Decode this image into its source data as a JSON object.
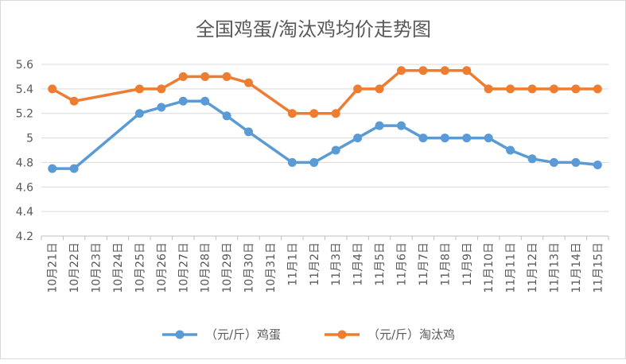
{
  "chart_data": {
    "type": "line",
    "title": "全国鸡蛋/淘汰鸡均价走势图",
    "xlabel": "",
    "ylabel": "",
    "ylim": [
      4.2,
      5.6
    ],
    "yticks": [
      "4.2",
      "4.4",
      "4.6",
      "4.8",
      "5",
      "5.2",
      "5.4",
      "5.6"
    ],
    "grid": true,
    "legend_position": "bottom",
    "categories": [
      "10月21日",
      "10月22日",
      "10月23日",
      "10月24日",
      "10月25日",
      "10月26日",
      "10月27日",
      "10月28日",
      "10月29日",
      "10月30日",
      "10月31日",
      "11月1日",
      "11月2日",
      "11月3日",
      "11月4日",
      "11月5日",
      "11月6日",
      "11月7日",
      "11月8日",
      "11月9日",
      "11月10日",
      "11月11日",
      "11月12日",
      "11月13日",
      "11月14日",
      "11月15日"
    ],
    "series": [
      {
        "name": "（元/斤）鸡蛋",
        "color": "#5b9bd5",
        "values": [
          4.75,
          4.75,
          null,
          null,
          5.2,
          5.25,
          5.3,
          5.3,
          5.18,
          5.05,
          null,
          4.8,
          4.8,
          4.9,
          5.0,
          5.1,
          5.1,
          5.0,
          5.0,
          5.0,
          5.0,
          4.9,
          4.83,
          4.8,
          4.8,
          4.78
        ]
      },
      {
        "name": "（元/斤）淘汰鸡",
        "color": "#ed7d31",
        "values": [
          5.4,
          5.3,
          null,
          null,
          5.4,
          5.4,
          5.5,
          5.5,
          5.5,
          5.45,
          null,
          5.2,
          5.2,
          5.2,
          5.4,
          5.4,
          5.55,
          5.55,
          5.55,
          5.55,
          5.4,
          5.4,
          5.4,
          5.4,
          5.4,
          5.4
        ]
      }
    ]
  }
}
